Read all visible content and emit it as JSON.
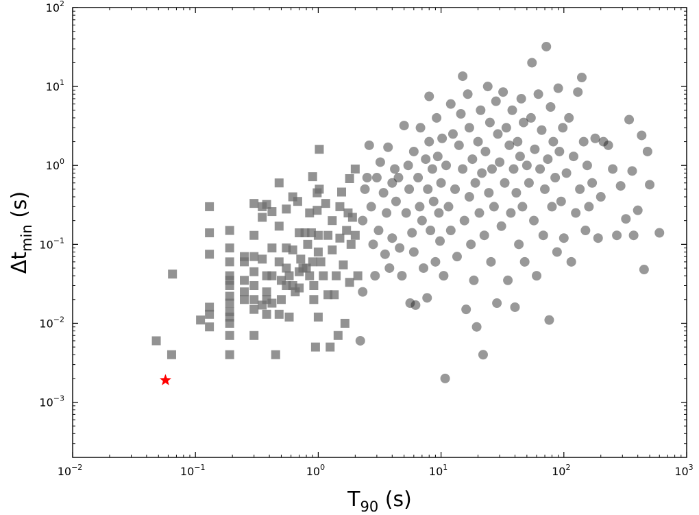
{
  "chart_data": {
    "type": "scatter",
    "xscale": "log",
    "yscale": "log",
    "xlim": [
      0.01,
      1000
    ],
    "ylim": [
      0.0002,
      100
    ],
    "grid": false,
    "xlabel": {
      "main": "T",
      "sub": "90",
      "suffix": " (s)"
    },
    "ylabel": {
      "main": "Δt",
      "sub": "min",
      "suffix": " (s)"
    },
    "x_ticks": [
      {
        "value": 0.01,
        "base": "10",
        "exp": "−2"
      },
      {
        "value": 0.1,
        "base": "10",
        "exp": "−1"
      },
      {
        "value": 1,
        "base": "10",
        "exp": "0"
      },
      {
        "value": 10,
        "base": "10",
        "exp": "1"
      },
      {
        "value": 100,
        "base": "10",
        "exp": "2"
      },
      {
        "value": 1000,
        "base": "10",
        "exp": "3"
      }
    ],
    "y_ticks": [
      {
        "value": 0.001,
        "base": "10",
        "exp": "−3"
      },
      {
        "value": 0.01,
        "base": "10",
        "exp": "−2"
      },
      {
        "value": 0.1,
        "base": "10",
        "exp": "−1"
      },
      {
        "value": 1,
        "base": "10",
        "exp": "0"
      },
      {
        "value": 10,
        "base": "10",
        "exp": "1"
      },
      {
        "value": 100,
        "base": "10",
        "exp": "2"
      }
    ],
    "colors": {
      "squares": "#6e6e6e",
      "circles": "#1a1a1a",
      "star": "#ff0000"
    },
    "series": [
      {
        "marker": "square",
        "points": [
          [
            0.048,
            0.006
          ],
          [
            0.065,
            0.042
          ],
          [
            0.064,
            0.004
          ],
          [
            0.11,
            0.011
          ],
          [
            0.13,
            0.3
          ],
          [
            0.13,
            0.14
          ],
          [
            0.13,
            0.075
          ],
          [
            0.13,
            0.016
          ],
          [
            0.13,
            0.013
          ],
          [
            0.13,
            0.009
          ],
          [
            0.19,
            0.15
          ],
          [
            0.19,
            0.09
          ],
          [
            0.19,
            0.06
          ],
          [
            0.19,
            0.04
          ],
          [
            0.19,
            0.035
          ],
          [
            0.19,
            0.03
          ],
          [
            0.19,
            0.022
          ],
          [
            0.19,
            0.018
          ],
          [
            0.19,
            0.014
          ],
          [
            0.19,
            0.012
          ],
          [
            0.19,
            0.01
          ],
          [
            0.19,
            0.007
          ],
          [
            0.19,
            0.004
          ],
          [
            0.25,
            0.07
          ],
          [
            0.25,
            0.06
          ],
          [
            0.25,
            0.035
          ],
          [
            0.25,
            0.025
          ],
          [
            0.25,
            0.02
          ],
          [
            0.3,
            0.33
          ],
          [
            0.3,
            0.13
          ],
          [
            0.3,
            0.07
          ],
          [
            0.3,
            0.045
          ],
          [
            0.3,
            0.03
          ],
          [
            0.3,
            0.02
          ],
          [
            0.3,
            0.015
          ],
          [
            0.3,
            0.007
          ],
          [
            0.35,
            0.3
          ],
          [
            0.35,
            0.22
          ],
          [
            0.35,
            0.065
          ],
          [
            0.35,
            0.017
          ],
          [
            0.38,
            0.32
          ],
          [
            0.38,
            0.04
          ],
          [
            0.38,
            0.025
          ],
          [
            0.38,
            0.02
          ],
          [
            0.38,
            0.013
          ],
          [
            0.42,
            0.26
          ],
          [
            0.42,
            0.09
          ],
          [
            0.42,
            0.04
          ],
          [
            0.42,
            0.018
          ],
          [
            0.45,
            0.004
          ],
          [
            0.48,
            0.6
          ],
          [
            0.48,
            0.17
          ],
          [
            0.48,
            0.06
          ],
          [
            0.48,
            0.013
          ],
          [
            0.5,
            0.035
          ],
          [
            0.5,
            0.02
          ],
          [
            0.55,
            0.28
          ],
          [
            0.55,
            0.09
          ],
          [
            0.55,
            0.05
          ],
          [
            0.55,
            0.03
          ],
          [
            0.58,
            0.04
          ],
          [
            0.58,
            0.012
          ],
          [
            0.62,
            0.4
          ],
          [
            0.62,
            0.085
          ],
          [
            0.62,
            0.03
          ],
          [
            0.65,
            0.025
          ],
          [
            0.68,
            0.35
          ],
          [
            0.7,
            0.14
          ],
          [
            0.7,
            0.045
          ],
          [
            0.7,
            0.028
          ],
          [
            0.72,
            0.065
          ],
          [
            0.75,
            0.05
          ],
          [
            0.78,
            0.14
          ],
          [
            0.8,
            0.05
          ],
          [
            0.82,
            0.1
          ],
          [
            0.85,
            0.25
          ],
          [
            0.85,
            0.04
          ],
          [
            0.88,
            0.14
          ],
          [
            0.9,
            0.72
          ],
          [
            0.9,
            0.06
          ],
          [
            0.92,
            0.03
          ],
          [
            0.92,
            0.02
          ],
          [
            0.95,
            0.005
          ],
          [
            0.98,
            0.45
          ],
          [
            0.98,
            0.27
          ],
          [
            1.0,
            0.13
          ],
          [
            1.0,
            0.08
          ],
          [
            1.0,
            0.012
          ],
          [
            1.02,
            1.6
          ],
          [
            1.02,
            0.5
          ],
          [
            1.05,
            0.06
          ],
          [
            1.1,
            0.04
          ],
          [
            1.15,
            0.33
          ],
          [
            1.2,
            0.13
          ],
          [
            1.2,
            0.023
          ],
          [
            1.25,
            0.005
          ],
          [
            1.3,
            0.2
          ],
          [
            1.3,
            0.085
          ],
          [
            1.35,
            0.023
          ],
          [
            1.4,
            0.04
          ],
          [
            1.45,
            0.007
          ],
          [
            1.5,
            0.3
          ],
          [
            1.5,
            0.12
          ],
          [
            1.55,
            0.46
          ],
          [
            1.6,
            0.055
          ],
          [
            1.65,
            0.01
          ],
          [
            1.7,
            0.15
          ],
          [
            1.75,
            0.25
          ],
          [
            1.8,
            0.033
          ],
          [
            1.8,
            0.68
          ],
          [
            1.85,
            0.1
          ],
          [
            1.9,
            0.22
          ],
          [
            2.0,
            0.9
          ],
          [
            2.0,
            0.13
          ],
          [
            2.1,
            0.04
          ]
        ]
      },
      {
        "marker": "circle",
        "points": [
          [
            2.2,
            0.006
          ],
          [
            2.3,
            0.2
          ],
          [
            2.3,
            0.025
          ],
          [
            2.4,
            0.5
          ],
          [
            2.5,
            0.7
          ],
          [
            2.6,
            1.8
          ],
          [
            2.7,
            0.3
          ],
          [
            2.8,
            0.1
          ],
          [
            2.9,
            0.04
          ],
          [
            3.0,
            0.7
          ],
          [
            3.1,
            0.15
          ],
          [
            3.2,
            1.1
          ],
          [
            3.4,
            0.45
          ],
          [
            3.5,
            0.075
          ],
          [
            3.6,
            0.25
          ],
          [
            3.7,
            1.7
          ],
          [
            3.8,
            0.05
          ],
          [
            4.0,
            0.6
          ],
          [
            4.0,
            0.12
          ],
          [
            4.2,
            0.9
          ],
          [
            4.3,
            0.35
          ],
          [
            4.5,
            0.7
          ],
          [
            4.6,
            0.09
          ],
          [
            4.8,
            0.04
          ],
          [
            5.0,
            3.2
          ],
          [
            5.2,
            0.25
          ],
          [
            5.4,
            1.0
          ],
          [
            5.5,
            0.5
          ],
          [
            5.6,
            0.018
          ],
          [
            5.8,
            0.14
          ],
          [
            6.0,
            1.5
          ],
          [
            6.0,
            0.08
          ],
          [
            6.2,
            0.017
          ],
          [
            6.5,
            0.7
          ],
          [
            6.7,
            0.3
          ],
          [
            6.8,
            3.0
          ],
          [
            7.0,
            0.2
          ],
          [
            7.2,
            0.05
          ],
          [
            7.5,
            1.2
          ],
          [
            7.7,
            0.021
          ],
          [
            7.8,
            0.5
          ],
          [
            8.0,
            7.5
          ],
          [
            8.0,
            2.0
          ],
          [
            8.2,
            0.15
          ],
          [
            8.5,
            0.9
          ],
          [
            8.7,
            0.35
          ],
          [
            9.0,
            0.06
          ],
          [
            9.2,
            4.0
          ],
          [
            9.4,
            1.3
          ],
          [
            9.6,
            0.25
          ],
          [
            9.8,
            0.11
          ],
          [
            10.0,
            0.6
          ],
          [
            10.2,
            2.2
          ],
          [
            10.5,
            0.04
          ],
          [
            10.8,
            0.002
          ],
          [
            11.0,
            1.0
          ],
          [
            11.5,
            0.3
          ],
          [
            12.0,
            6.0
          ],
          [
            12.0,
            0.15
          ],
          [
            12.5,
            2.5
          ],
          [
            13.0,
            0.5
          ],
          [
            13.5,
            0.07
          ],
          [
            14.0,
            1.8
          ],
          [
            14.5,
            4.5
          ],
          [
            15.0,
            13.5
          ],
          [
            15.0,
            0.9
          ],
          [
            15.5,
            0.2
          ],
          [
            16.0,
            0.015
          ],
          [
            16.5,
            8.0
          ],
          [
            17.0,
            3.0
          ],
          [
            17.0,
            0.4
          ],
          [
            17.5,
            0.1
          ],
          [
            18.0,
            1.2
          ],
          [
            18.5,
            0.035
          ],
          [
            19.0,
            0.6
          ],
          [
            19.5,
            0.009
          ],
          [
            20.0,
            2.0
          ],
          [
            20.5,
            0.25
          ],
          [
            21.0,
            5.0
          ],
          [
            21.5,
            0.8
          ],
          [
            22.0,
            0.004
          ],
          [
            22.5,
            0.13
          ],
          [
            23.0,
            1.5
          ],
          [
            24.0,
            10.0
          ],
          [
            24.5,
            0.45
          ],
          [
            25.0,
            3.5
          ],
          [
            25.5,
            0.06
          ],
          [
            26.0,
            0.9
          ],
          [
            27.0,
            0.3
          ],
          [
            28.0,
            6.5
          ],
          [
            28.5,
            0.018
          ],
          [
            29.0,
            2.5
          ],
          [
            30.0,
            1.1
          ],
          [
            31.0,
            0.17
          ],
          [
            32.0,
            8.5
          ],
          [
            33.0,
            0.6
          ],
          [
            34.0,
            3.0
          ],
          [
            35.0,
            0.035
          ],
          [
            36.0,
            1.8
          ],
          [
            37.0,
            0.25
          ],
          [
            38.0,
            5.0
          ],
          [
            39.0,
            0.9
          ],
          [
            40.0,
            0.016
          ],
          [
            41.0,
            0.45
          ],
          [
            42.0,
            2.0
          ],
          [
            43.0,
            0.1
          ],
          [
            44.0,
            1.3
          ],
          [
            45.0,
            7.0
          ],
          [
            46.0,
            0.3
          ],
          [
            47.0,
            3.5
          ],
          [
            48.0,
            0.06
          ],
          [
            50.0,
            1.0
          ],
          [
            52.0,
            0.6
          ],
          [
            54.0,
            4.0
          ],
          [
            55.0,
            20.0
          ],
          [
            57.0,
            0.2
          ],
          [
            58.0,
            1.6
          ],
          [
            60.0,
            0.04
          ],
          [
            62.0,
            8.0
          ],
          [
            64.0,
            0.9
          ],
          [
            66.0,
            2.8
          ],
          [
            68.0,
            0.13
          ],
          [
            70.0,
            0.5
          ],
          [
            72.0,
            32.0
          ],
          [
            74.0,
            1.2
          ],
          [
            76.0,
            0.011
          ],
          [
            78.0,
            5.5
          ],
          [
            80.0,
            0.3
          ],
          [
            82.0,
            2.0
          ],
          [
            85.0,
            0.7
          ],
          [
            88.0,
            0.08
          ],
          [
            90.0,
            9.5
          ],
          [
            92.0,
            1.5
          ],
          [
            95.0,
            0.35
          ],
          [
            98.0,
            3.0
          ],
          [
            100.0,
            0.12
          ],
          [
            105.0,
            0.8
          ],
          [
            110.0,
            4.0
          ],
          [
            115.0,
            0.06
          ],
          [
            120.0,
            1.3
          ],
          [
            125.0,
            0.25
          ],
          [
            130.0,
            8.5
          ],
          [
            135.0,
            0.5
          ],
          [
            140.0,
            13.0
          ],
          [
            145.0,
            2.0
          ],
          [
            150.0,
            0.15
          ],
          [
            155.0,
            1.0
          ],
          [
            160.0,
            0.3
          ],
          [
            170.0,
            0.6
          ],
          [
            180.0,
            2.2
          ],
          [
            190.0,
            0.12
          ],
          [
            200.0,
            0.4
          ],
          [
            210.0,
            2.0
          ],
          [
            230.0,
            1.8
          ],
          [
            250.0,
            0.9
          ],
          [
            270.0,
            0.13
          ],
          [
            290.0,
            0.55
          ],
          [
            320.0,
            0.21
          ],
          [
            340.0,
            3.8
          ],
          [
            360.0,
            0.85
          ],
          [
            370.0,
            0.13
          ],
          [
            400.0,
            0.27
          ],
          [
            430.0,
            2.4
          ],
          [
            450.0,
            0.048
          ],
          [
            480.0,
            1.5
          ],
          [
            500.0,
            0.57
          ],
          [
            600.0,
            0.14
          ]
        ]
      },
      {
        "marker": "star",
        "points": [
          [
            0.057,
            0.0019
          ]
        ]
      }
    ]
  }
}
